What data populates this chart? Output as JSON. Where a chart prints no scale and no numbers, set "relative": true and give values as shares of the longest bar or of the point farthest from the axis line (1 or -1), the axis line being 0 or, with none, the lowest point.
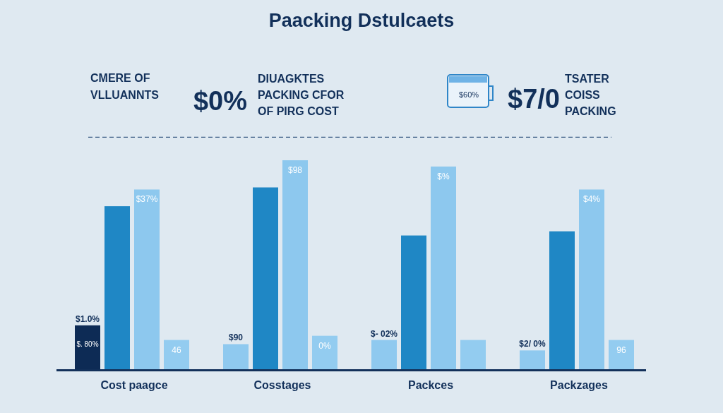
{
  "chart_data": {
    "type": "bar",
    "title": "Paacking Dstulcaets",
    "categories": [
      "Cost paagce",
      "Cosstages",
      "Packces",
      "Packzages"
    ],
    "relative": true,
    "series": [
      {
        "color": "#0d2b55",
        "values": [
          0.21,
          null,
          null,
          null
        ]
      },
      {
        "color": "#8fc9ef",
        "values": [
          null,
          0.12,
          0.14,
          0.09
        ]
      },
      {
        "color": "#1f87c5",
        "values": [
          0.78,
          0.87,
          0.64,
          0.66
        ]
      },
      {
        "color": "#8dc8ee",
        "values": [
          0.86,
          1,
          0.97,
          0.86
        ]
      },
      {
        "color": "#93ccf0",
        "values": [
          0.14,
          0.16,
          0.14,
          0.14
        ]
      }
    ],
    "ref_lines": [
      {
        "axis": "y",
        "value": 1.11,
        "color": "#3d5f86",
        "line_style": "dashed"
      }
    ],
    "annotations": [
      "CMERE OF\nVLLUANNTS",
      "$0%",
      "DIUAGKTES\nPACKING CFOR\nOF PIRG COST",
      "$60%",
      "$7/0",
      "TSATER\nCOISS\nPACKING",
      "$1.0%",
      "$. 80%",
      "$37%",
      "46",
      "$90",
      "$98",
      "0%",
      "$- 02%",
      "$%",
      "$2/ 0%",
      "$4%",
      "96"
    ]
  }
}
